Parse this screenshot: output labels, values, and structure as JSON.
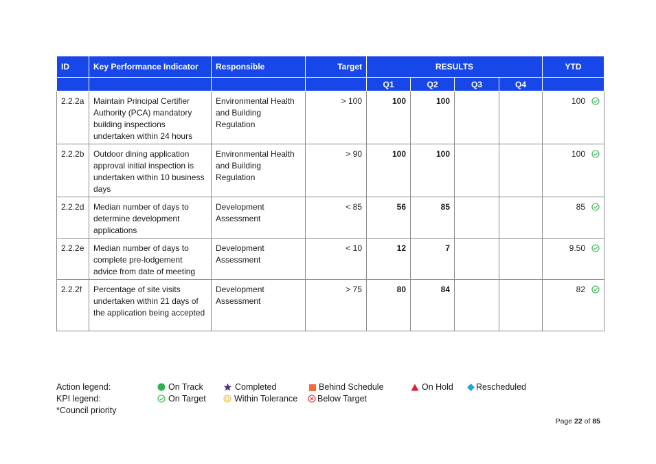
{
  "table": {
    "headers": {
      "id": "ID",
      "kpi": "Key Performance Indicator",
      "responsible": "Responsible",
      "target": "Target",
      "results": "RESULTS",
      "ytd": "YTD",
      "q1": "Q1",
      "q2": "Q2",
      "q3": "Q3",
      "q4": "Q4"
    },
    "rows": [
      {
        "id": "2.2.2a",
        "kpi": "Maintain Principal Certifier Authority (PCA) mandatory building inspections undertaken within 24 hours",
        "responsible": "Environmental Health and Building Regulation",
        "target": "> 100",
        "q1": "100",
        "q2": "100",
        "q3": "",
        "q4": "",
        "ytd": "100",
        "ytd_status_icon": "on-target-icon"
      },
      {
        "id": "2.2.2b",
        "kpi": "Outdoor dining application approval initial inspection is undertaken within 10 business days",
        "responsible": "Environmental Health and Building Regulation",
        "target": "> 90",
        "q1": "100",
        "q2": "100",
        "q3": "",
        "q4": "",
        "ytd": "100",
        "ytd_status_icon": "on-target-icon"
      },
      {
        "id": "2.2.2d",
        "kpi": "Median number of days to determine development applications",
        "responsible": "Development Assessment",
        "target": "< 85",
        "q1": "56",
        "q2": "85",
        "q3": "",
        "q4": "",
        "ytd": "85",
        "ytd_status_icon": "on-target-icon"
      },
      {
        "id": "2.2.2e",
        "kpi": "Median number of days to complete pre-lodgement advice from date of meeting",
        "responsible": "Development Assessment",
        "target": "< 10",
        "q1": "12",
        "q2": "7",
        "q3": "",
        "q4": "",
        "ytd": "9.50",
        "ytd_status_icon": "on-target-icon"
      },
      {
        "id": "2.2.2f",
        "kpi": "Percentage of site visits undertaken within 21 days of the application being accepted",
        "responsible": "Development Assessment",
        "target": "> 75",
        "q1": "80",
        "q2": "84",
        "q3": "",
        "q4": "",
        "ytd": "82",
        "ytd_status_icon": "on-target-icon"
      }
    ]
  },
  "legend": {
    "action_label": "Action legend:",
    "kpi_label": "KPI legend:",
    "council_priority": "*Council priority",
    "action_items": {
      "on_track": "On Track",
      "completed": "Completed",
      "behind_schedule": "Behind Schedule",
      "on_hold": "On Hold",
      "rescheduled": "Rescheduled"
    },
    "kpi_items": {
      "on_target": "On Target",
      "within_tolerance": "Within Tolerance",
      "below_target": "Below Target"
    }
  },
  "footer": {
    "page_word": "Page",
    "page_current": "22",
    "page_of": "of",
    "page_total": "85"
  },
  "colors": {
    "header_blue": "#1747e9",
    "on_track_green": "#2db34a",
    "completed_purple": "#5b2d8c",
    "behind_orange": "#f26b3a",
    "on_hold_red": "#e0202a",
    "rescheduled_blue": "#1fa3e0",
    "on_target_green": "#2db34a",
    "tolerance_yellow": "#f5b82e",
    "below_red": "#e0202a"
  }
}
